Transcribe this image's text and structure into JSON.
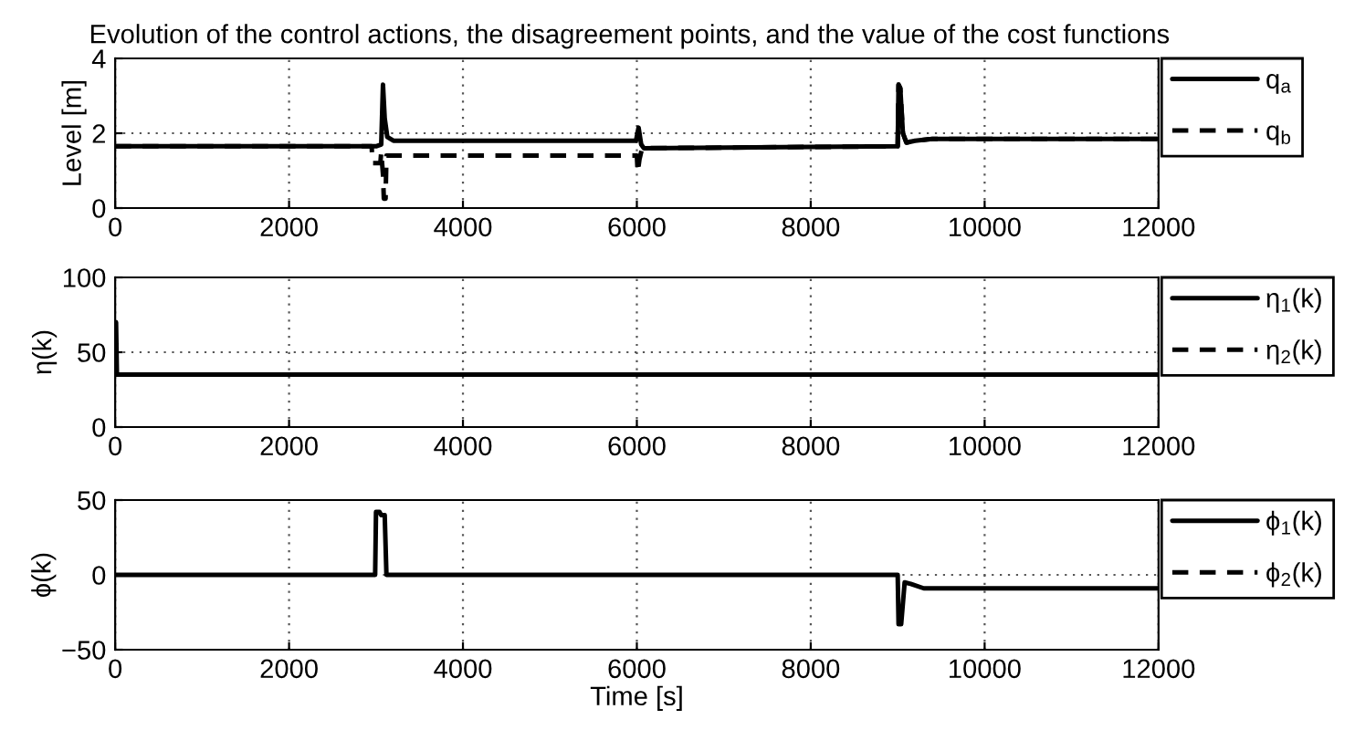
{
  "chart_data": [
    {
      "type": "line",
      "title": "Evolution of the control actions, the disagreement points, and the value of the cost functions",
      "ylabel": "Level [m]",
      "xlim": [
        0,
        12000
      ],
      "xticks": [
        0,
        2000,
        4000,
        6000,
        8000,
        10000,
        12000
      ],
      "ylim": [
        0,
        4
      ],
      "yticks": [
        0,
        2,
        4
      ],
      "grid": true,
      "legend": "right",
      "series": [
        {
          "name": "q$_{a}$",
          "color": "#000000",
          "line_style": "solid",
          "x": [
            0,
            3000,
            3060,
            3080,
            3100,
            3130,
            3200,
            5990,
            6020,
            6050,
            6080,
            9000,
            9010,
            9030,
            9060,
            9100,
            9200,
            9400,
            12000
          ],
          "values": [
            1.65,
            1.65,
            1.7,
            3.3,
            2.4,
            1.9,
            1.8,
            1.8,
            2.15,
            1.7,
            1.6,
            1.65,
            3.3,
            3.2,
            2.0,
            1.75,
            1.8,
            1.85,
            1.85
          ]
        },
        {
          "name": "q$_{b}$",
          "color": "#000000",
          "line_style": "dashed",
          "x": [
            0,
            2950,
            2960,
            3050,
            3060,
            3080,
            3090,
            3110,
            3120,
            3200,
            6000,
            6010,
            6030,
            6060,
            9000,
            9010,
            9030,
            9060,
            9100,
            9200,
            9400,
            12000
          ],
          "values": [
            1.65,
            1.65,
            1.2,
            1.2,
            1.5,
            0.9,
            0.25,
            0.25,
            1.4,
            1.4,
            1.4,
            0.95,
            1.3,
            1.6,
            1.65,
            3.3,
            3.2,
            2.0,
            1.75,
            1.8,
            1.85,
            1.85
          ]
        }
      ]
    },
    {
      "type": "line",
      "ylabel": "η(k)",
      "xlim": [
        0,
        12000
      ],
      "xticks": [
        0,
        2000,
        4000,
        6000,
        8000,
        10000,
        12000
      ],
      "ylim": [
        0,
        100
      ],
      "yticks": [
        0,
        50,
        100
      ],
      "grid": true,
      "legend": "right",
      "series": [
        {
          "name": "η$_{1}$(k)",
          "color": "#000000",
          "line_style": "solid",
          "x": [
            0,
            10,
            20,
            12000
          ],
          "values": [
            70,
            70,
            35,
            35
          ]
        },
        {
          "name": "η$_{2}$(k)",
          "color": "#000000",
          "line_style": "dashed",
          "values": [
            null
          ]
        }
      ]
    },
    {
      "type": "line",
      "xlabel": "Time [s]",
      "ylabel": "ϕ(k)",
      "xlim": [
        0,
        12000
      ],
      "xticks": [
        0,
        2000,
        4000,
        6000,
        8000,
        10000,
        12000
      ],
      "ylim": [
        -50,
        50
      ],
      "yticks": [
        {
          "value": -50,
          "label": "−50"
        },
        0,
        50
      ],
      "grid": true,
      "legend": "right",
      "series": [
        {
          "name": "ϕ$_{1}$(k)",
          "color": "#000000",
          "line_style": "solid",
          "x": [
            0,
            2990,
            3000,
            3040,
            3060,
            3100,
            3120,
            9000,
            9010,
            9040,
            9080,
            9150,
            9300,
            12000
          ],
          "values": [
            0,
            0,
            42,
            42,
            40,
            40,
            0,
            0,
            -33,
            -33,
            -5,
            -6,
            -9,
            -9
          ]
        },
        {
          "name": "ϕ$_{2}$(k)",
          "color": "#000000",
          "line_style": "dashed",
          "values": [
            null
          ]
        }
      ]
    }
  ]
}
